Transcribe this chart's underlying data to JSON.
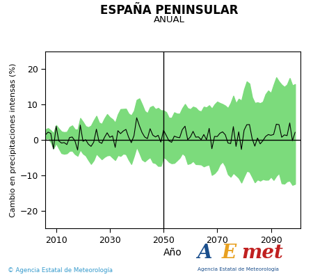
{
  "title": "ESPAÑA PENINSULAR",
  "subtitle": "ANUAL",
  "xlabel": "Año",
  "ylabel": "Cambio en precipitaciones intensas (%)",
  "xlim": [
    2006,
    2101
  ],
  "ylim": [
    -25,
    25
  ],
  "yticks": [
    -20,
    -10,
    0,
    10,
    20
  ],
  "xticks": [
    2010,
    2030,
    2050,
    2070,
    2090
  ],
  "x_start": 2006,
  "x_end": 2099,
  "vline_x": 2050,
  "hline_y": 0,
  "green_fill_color": "#7CDB7C",
  "line_color": "#000000",
  "background_color": "#ffffff",
  "copyright_text": "© Agencia Estatal de Meteorología",
  "title_fontsize": 12,
  "subtitle_fontsize": 9.5,
  "xlabel_fontsize": 10,
  "ylabel_fontsize": 8,
  "tick_fontsize": 9,
  "seed": 77
}
